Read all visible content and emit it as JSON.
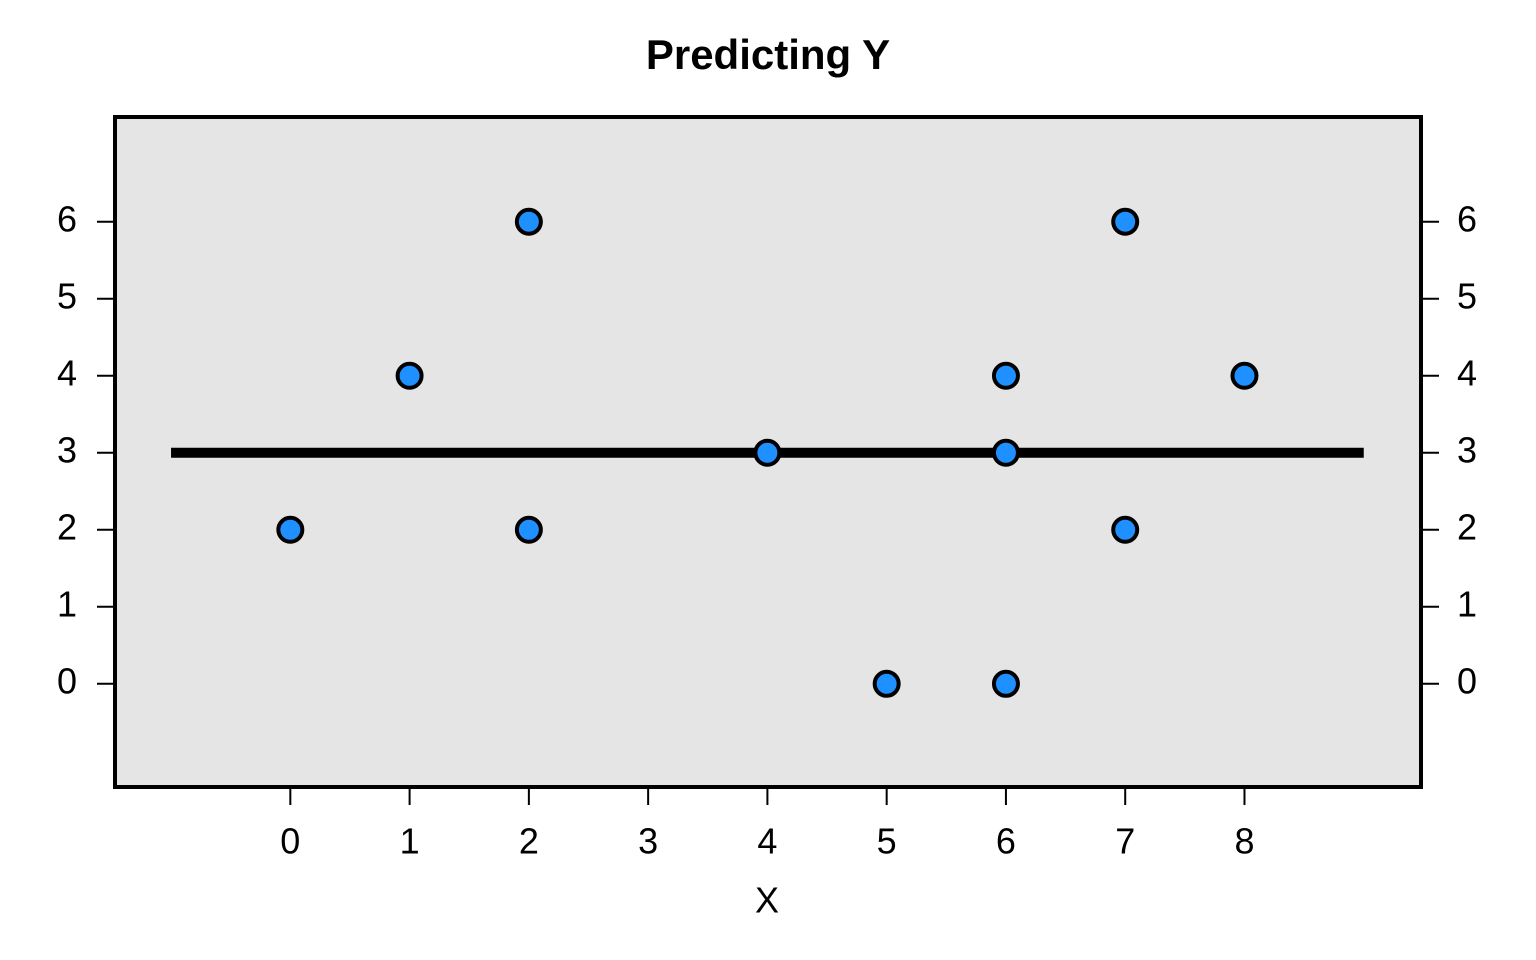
{
  "chart_data": {
    "type": "scatter",
    "title": "Predicting Y",
    "x_label": "X",
    "x": [
      0,
      1,
      2,
      2,
      4,
      5,
      6,
      6,
      6,
      7,
      7,
      8
    ],
    "y": [
      2,
      4,
      6,
      2,
      3,
      0,
      4,
      3,
      0,
      6,
      2,
      4
    ],
    "color": "#1e90ff",
    "reference_line": {
      "x": [
        -1,
        9
      ],
      "y": [
        3,
        3
      ],
      "color": "#000000"
    },
    "xlim": [
      -1.47,
      9.48
    ],
    "ylim": [
      -1.34,
      7.36
    ],
    "xticks": [
      0,
      1,
      2,
      3,
      4,
      5,
      6,
      7,
      8
    ],
    "yticks": [
      0,
      1,
      2,
      3,
      4,
      5,
      6
    ],
    "background": "#e5e5e5"
  }
}
